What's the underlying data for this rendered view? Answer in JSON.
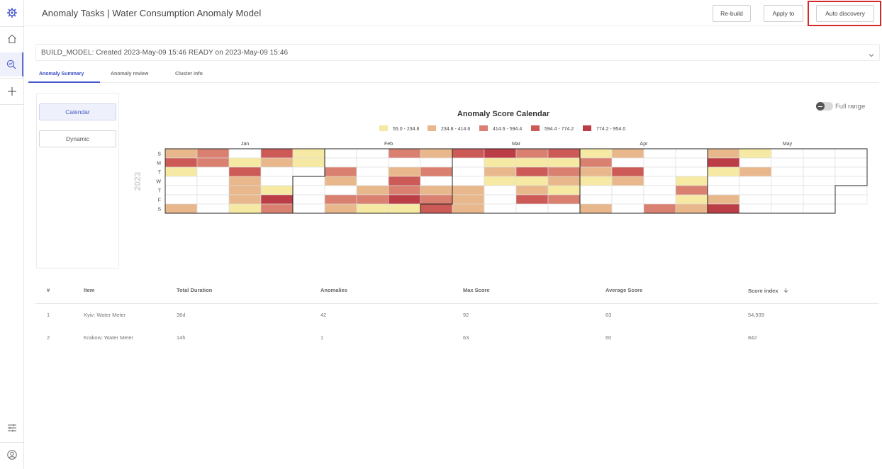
{
  "header": {
    "title": "Anomaly Tasks | Water Consumption Anomaly Model",
    "buttons": {
      "rebuild": "Re-build",
      "apply_to": "Apply to",
      "auto_discovery": "Auto discovery"
    }
  },
  "rail": {
    "icons": [
      "logo-icon",
      "home-icon",
      "search-analytics-icon",
      "plus-icon",
      "settings-sliders-icon",
      "user-icon"
    ],
    "active": "search-analytics-icon"
  },
  "build_status": {
    "text": "BUILD_MODEL: Created 2023-May-09 15:46 READY on 2023-May-09 15:46"
  },
  "tabs": [
    {
      "label": "Anomaly Summary",
      "active": true
    },
    {
      "label": "Anomaly review",
      "active": false
    },
    {
      "label": "Cluster info",
      "active": false
    }
  ],
  "view_switch": {
    "calendar": "Calendar",
    "dynamic": "Dynamic",
    "selected": "Calendar"
  },
  "full_range": {
    "label": "Full range",
    "on": false
  },
  "chart_data": {
    "type": "heatmap",
    "title": "Anomaly Score Calendar",
    "year": "2023",
    "legend": [
      {
        "label": "55.0 - 234.8",
        "color": "#f5e9a4"
      },
      {
        "label": "234.8 - 414.6",
        "color": "#e8b88c"
      },
      {
        "label": "414.6 - 594.4",
        "color": "#d98070"
      },
      {
        "label": "594.4 - 774.2",
        "color": "#cc5b57"
      },
      {
        "label": "774.2 - 954.0",
        "color": "#bb3d45"
      }
    ],
    "months": [
      {
        "label": "Jan",
        "start_week": 0
      },
      {
        "label": "Feb",
        "start_week": 5
      },
      {
        "label": "Mar",
        "start_week": 9
      },
      {
        "label": "Apr",
        "start_week": 13
      },
      {
        "label": "May",
        "start_week": 17
      }
    ],
    "weekdays": [
      "S",
      "M",
      "T",
      "W",
      "T",
      "F",
      "S"
    ],
    "weeks": [
      [
        2,
        4,
        1,
        0,
        0,
        0,
        2
      ],
      [
        3,
        3,
        0,
        0,
        0,
        0,
        0
      ],
      [
        0,
        1,
        4,
        2,
        2,
        2,
        1
      ],
      [
        4,
        2,
        0,
        0,
        1,
        5,
        3
      ],
      [
        1,
        1,
        0,
        0,
        0,
        0,
        0
      ],
      [
        0,
        0,
        3,
        2,
        0,
        3,
        2
      ],
      [
        0,
        0,
        0,
        0,
        2,
        3,
        1
      ],
      [
        3,
        0,
        2,
        4,
        3,
        5,
        1
      ],
      [
        2,
        0,
        3,
        0,
        2,
        3,
        4
      ],
      [
        4,
        0,
        0,
        0,
        2,
        2,
        2
      ],
      [
        5,
        1,
        2,
        1,
        0,
        0,
        0
      ],
      [
        3,
        1,
        4,
        1,
        2,
        4,
        0
      ],
      [
        4,
        1,
        3,
        2,
        1,
        3,
        0
      ],
      [
        1,
        3,
        2,
        1,
        0,
        0,
        2
      ],
      [
        2,
        0,
        4,
        2,
        0,
        0,
        0
      ],
      [
        0,
        0,
        0,
        0,
        0,
        0,
        3
      ],
      [
        0,
        0,
        0,
        1,
        3,
        1,
        2
      ],
      [
        2,
        5,
        1,
        0,
        0,
        2,
        5
      ],
      [
        1,
        0,
        2,
        0,
        0,
        0,
        0
      ],
      [
        0,
        0,
        0,
        0,
        0,
        0,
        0
      ],
      [
        0,
        0,
        0,
        0,
        0,
        0,
        0
      ],
      [
        0,
        0,
        0,
        0,
        0,
        0,
        null
      ]
    ],
    "level_colors": [
      "#ffffff",
      "#f5e9a4",
      "#e8b88c",
      "#d98070",
      "#cc5b57",
      "#bb3d45"
    ]
  },
  "table": {
    "columns": [
      "#",
      "Item",
      "Total Duration",
      "Anomalies",
      "Max Score",
      "Average Score",
      "Score index"
    ],
    "sort_column": "Score index",
    "rows": [
      {
        "num": "1",
        "item": "Kyiv: Water Meter",
        "duration": "36d",
        "anomalies": "42",
        "max": "92",
        "avg": "63",
        "index": "54,939"
      },
      {
        "num": "2",
        "item": "Krakow: Water Meter",
        "duration": "14h",
        "anomalies": "1",
        "max": "63",
        "avg": "60",
        "index": "842"
      }
    ]
  }
}
